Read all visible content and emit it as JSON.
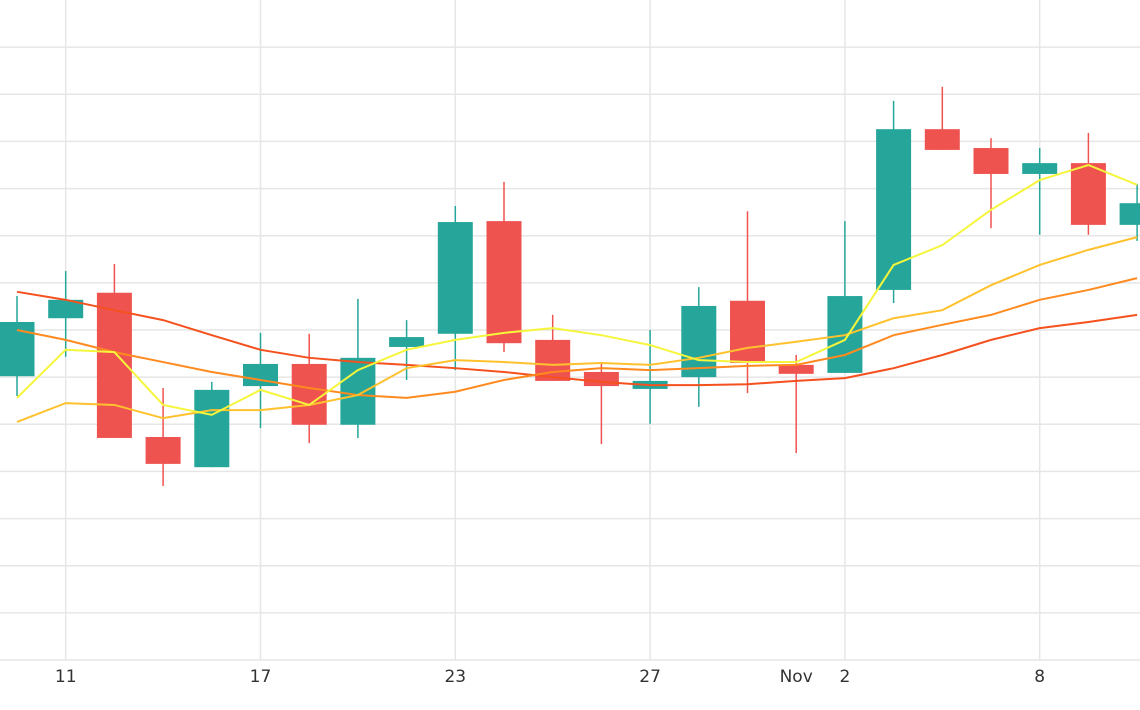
{
  "chart_data": {
    "type": "candlestick",
    "categories": [
      null,
      "11",
      null,
      null,
      null,
      "17",
      null,
      null,
      null,
      "23",
      null,
      null,
      null,
      "27",
      null,
      null,
      "Nov",
      "2",
      null,
      null,
      null,
      "8",
      null,
      null
    ],
    "open": [
      6.02,
      7.25,
      7.79,
      4.73,
      4.09,
      5.81,
      6.28,
      4.99,
      6.64,
      6.92,
      9.31,
      6.79,
      6.11,
      5.75,
      6.0,
      7.62,
      6.26,
      6.09,
      7.85,
      11.26,
      10.86,
      10.31,
      10.54,
      9.23
    ],
    "high": [
      7.72,
      8.25,
      8.4,
      5.77,
      5.9,
      6.94,
      6.92,
      7.66,
      7.21,
      9.63,
      10.14,
      7.32,
      6.28,
      7.0,
      7.91,
      9.52,
      6.47,
      9.31,
      11.86,
      12.16,
      11.07,
      10.86,
      11.18,
      10.1
    ],
    "low": [
      5.6,
      6.43,
      4.71,
      3.69,
      4.09,
      4.92,
      4.6,
      4.71,
      5.94,
      6.15,
      6.53,
      5.92,
      4.58,
      5.01,
      5.37,
      5.66,
      4.39,
      6.09,
      7.57,
      10.82,
      9.16,
      9.02,
      9.02,
      8.89
    ],
    "close": [
      7.17,
      7.64,
      4.71,
      4.16,
      5.73,
      6.28,
      4.99,
      6.41,
      6.85,
      9.29,
      6.72,
      5.92,
      5.81,
      5.92,
      7.51,
      6.3,
      6.07,
      7.72,
      11.26,
      10.82,
      10.31,
      10.54,
      9.23,
      9.69
    ],
    "up_color": "#26a69a",
    "down_color": "#ef5350",
    "series": [
      {
        "color": "#f4511e",
        "values": [
          7.81,
          7.64,
          7.42,
          7.21,
          6.89,
          6.58,
          6.41,
          6.32,
          6.26,
          6.19,
          6.11,
          6.0,
          5.9,
          5.83,
          5.83,
          5.85,
          5.92,
          5.98,
          6.19,
          6.47,
          6.79,
          7.04,
          7.17,
          7.32
        ]
      },
      {
        "color": "#ff8a1f",
        "values": [
          7.0,
          6.79,
          6.53,
          6.32,
          6.11,
          5.94,
          5.77,
          5.62,
          5.56,
          5.69,
          5.94,
          6.11,
          6.19,
          6.15,
          6.19,
          6.24,
          6.26,
          6.47,
          6.89,
          7.11,
          7.32,
          7.64,
          7.85,
          8.1
        ]
      },
      {
        "color": "#ffc22e",
        "values": [
          5.05,
          5.45,
          5.41,
          5.13,
          5.3,
          5.3,
          5.41,
          5.62,
          6.19,
          6.36,
          6.32,
          6.26,
          6.3,
          6.26,
          6.41,
          6.62,
          6.75,
          6.89,
          7.25,
          7.42,
          7.95,
          8.38,
          8.7,
          8.97
        ]
      },
      {
        "color": "#f5f53c",
        "values": [
          5.56,
          6.58,
          6.53,
          5.41,
          5.2,
          5.73,
          5.41,
          6.15,
          6.58,
          6.79,
          6.94,
          7.04,
          6.89,
          6.68,
          6.36,
          6.32,
          6.32,
          6.79,
          8.38,
          8.8,
          9.55,
          10.18,
          10.5,
          10.08
        ]
      }
    ],
    "ylim": [
      0,
      14
    ],
    "yticks": [
      0,
      1,
      2,
      3,
      4,
      5,
      6,
      7,
      8,
      9,
      10,
      11,
      12,
      13
    ],
    "grid": true
  }
}
